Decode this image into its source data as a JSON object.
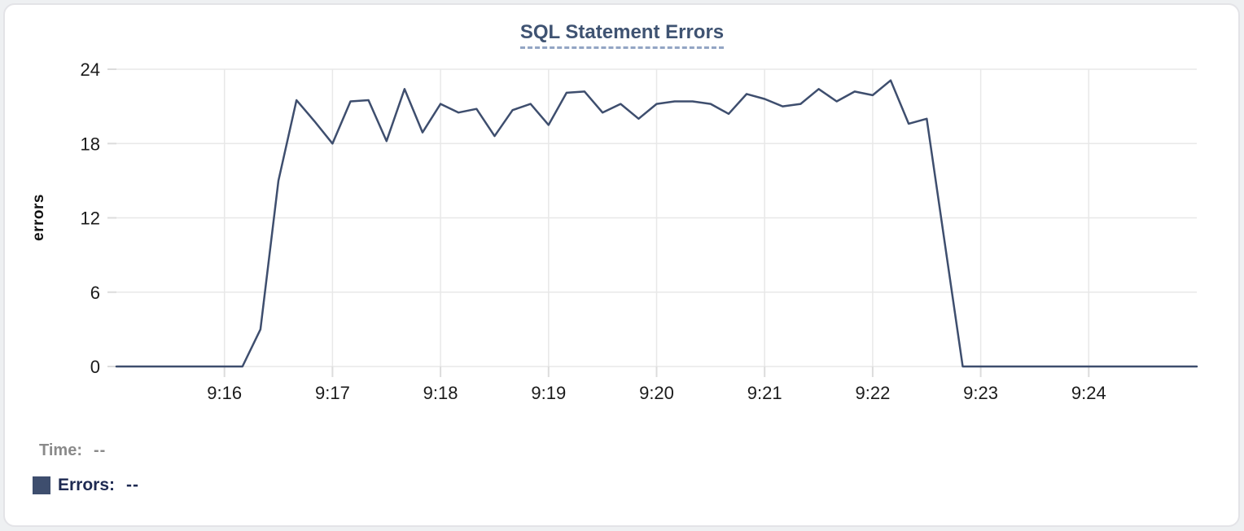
{
  "chart_data": {
    "type": "line",
    "title": "SQL Statement Errors",
    "xlabel": "",
    "ylabel": "errors",
    "xlim": [
      "9:15:00",
      "9:25:00"
    ],
    "ylim": [
      0,
      24
    ],
    "x_ticks": [
      "9:16",
      "9:17",
      "9:18",
      "9:19",
      "9:20",
      "9:21",
      "9:22",
      "9:23",
      "9:24"
    ],
    "y_ticks": [
      0,
      6,
      12,
      18,
      24
    ],
    "grid": true,
    "legend_position": "bottom-left",
    "series": [
      {
        "name": "Errors",
        "color": "#3e4e6e",
        "points": [
          [
            "9:15:00",
            0
          ],
          [
            "9:15:10",
            0
          ],
          [
            "9:15:20",
            0
          ],
          [
            "9:15:30",
            0
          ],
          [
            "9:15:40",
            0
          ],
          [
            "9:15:50",
            0
          ],
          [
            "9:16:00",
            0
          ],
          [
            "9:16:10",
            0
          ],
          [
            "9:16:20",
            3
          ],
          [
            "9:16:30",
            15
          ],
          [
            "9:16:40",
            21.5
          ],
          [
            "9:16:50",
            19.8
          ],
          [
            "9:17:00",
            18
          ],
          [
            "9:17:10",
            21.4
          ],
          [
            "9:17:20",
            21.5
          ],
          [
            "9:17:30",
            18.2
          ],
          [
            "9:17:40",
            22.4
          ],
          [
            "9:17:50",
            18.9
          ],
          [
            "9:18:00",
            21.2
          ],
          [
            "9:18:10",
            20.5
          ],
          [
            "9:18:20",
            20.8
          ],
          [
            "9:18:30",
            18.6
          ],
          [
            "9:18:40",
            20.7
          ],
          [
            "9:18:50",
            21.2
          ],
          [
            "9:19:00",
            19.5
          ],
          [
            "9:19:10",
            22.1
          ],
          [
            "9:19:20",
            22.2
          ],
          [
            "9:19:30",
            20.5
          ],
          [
            "9:19:40",
            21.2
          ],
          [
            "9:19:50",
            20
          ],
          [
            "9:20:00",
            21.2
          ],
          [
            "9:20:10",
            21.4
          ],
          [
            "9:20:20",
            21.4
          ],
          [
            "9:20:30",
            21.2
          ],
          [
            "9:20:40",
            20.4
          ],
          [
            "9:20:50",
            22
          ],
          [
            "9:21:00",
            21.6
          ],
          [
            "9:21:10",
            21
          ],
          [
            "9:21:20",
            21.2
          ],
          [
            "9:21:30",
            22.4
          ],
          [
            "9:21:40",
            21.4
          ],
          [
            "9:21:50",
            22.2
          ],
          [
            "9:22:00",
            21.9
          ],
          [
            "9:22:10",
            23.1
          ],
          [
            "9:22:20",
            19.6
          ],
          [
            "9:22:30",
            20
          ],
          [
            "9:22:40",
            10
          ],
          [
            "9:22:50",
            0
          ],
          [
            "9:23:00",
            0
          ],
          [
            "9:23:10",
            0
          ],
          [
            "9:23:20",
            0
          ],
          [
            "9:23:30",
            0
          ],
          [
            "9:23:40",
            0
          ],
          [
            "9:23:50",
            0
          ],
          [
            "9:24:00",
            0
          ],
          [
            "9:24:10",
            0
          ],
          [
            "9:24:20",
            0
          ],
          [
            "9:24:30",
            0
          ],
          [
            "9:24:40",
            0
          ],
          [
            "9:24:50",
            0
          ],
          [
            "9:25:00",
            0
          ]
        ]
      }
    ]
  },
  "legend": {
    "time_label": "Time:",
    "time_value": "--",
    "errors_label": "Errors:",
    "errors_value": "--"
  },
  "colors": {
    "line": "#3e4e6e",
    "title_text": "#3f5372",
    "title_underline": "#93a5c4",
    "legend_time_text": "#8a8a8a",
    "legend_errors_text": "#1e2a52",
    "tick_label_text": "#1b1b1b",
    "grid": "#e8e8e8",
    "card_border": "#e3e3e7",
    "card_background": "#ffffff"
  }
}
